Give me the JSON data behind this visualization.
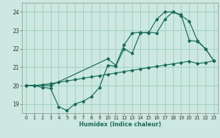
{
  "xlabel": "Humidex (Indice chaleur)",
  "ylabel": "",
  "xlim": [
    -0.5,
    23.5
  ],
  "ylim": [
    18.5,
    24.5
  ],
  "background_color": "#cce8e0",
  "grid_color": "#99ccbb",
  "line_color": "#1a6b5a",
  "xticks": [
    0,
    1,
    2,
    3,
    4,
    5,
    6,
    7,
    8,
    9,
    10,
    11,
    12,
    13,
    14,
    15,
    16,
    17,
    18,
    19,
    20,
    21,
    22,
    23
  ],
  "yticks": [
    19,
    20,
    21,
    22,
    23,
    24
  ],
  "series": [
    {
      "x": [
        0,
        1,
        2,
        3,
        4,
        5,
        6,
        7,
        8,
        9,
        10,
        11,
        12,
        13,
        14,
        15,
        16,
        17,
        18,
        19,
        20,
        21,
        22,
        23
      ],
      "y": [
        20.0,
        20.0,
        19.9,
        19.85,
        18.85,
        18.65,
        19.0,
        19.15,
        19.4,
        19.9,
        21.1,
        21.05,
        22.0,
        21.75,
        22.85,
        22.9,
        22.85,
        23.6,
        24.0,
        23.8,
        23.5,
        22.45,
        22.0,
        21.35
      ]
    },
    {
      "x": [
        0,
        1,
        3,
        10,
        11,
        12,
        13,
        14,
        15,
        16,
        17,
        18,
        19,
        20,
        21,
        22,
        23
      ],
      "y": [
        20.0,
        20.0,
        20.0,
        21.45,
        21.1,
        22.2,
        22.85,
        22.9,
        22.85,
        23.6,
        24.0,
        24.0,
        23.85,
        22.45,
        22.4,
        22.0,
        21.35
      ]
    },
    {
      "x": [
        0,
        1,
        2,
        3,
        4,
        5,
        6,
        7,
        8,
        9,
        10,
        11,
        12,
        13,
        14,
        15,
        16,
        17,
        18,
        19,
        20,
        21,
        22,
        23
      ],
      "y": [
        20.0,
        20.0,
        20.05,
        20.1,
        20.18,
        20.25,
        20.32,
        20.4,
        20.47,
        20.54,
        20.61,
        20.68,
        20.76,
        20.83,
        20.9,
        20.97,
        21.04,
        21.11,
        21.18,
        21.25,
        21.32,
        21.2,
        21.25,
        21.35
      ]
    }
  ]
}
